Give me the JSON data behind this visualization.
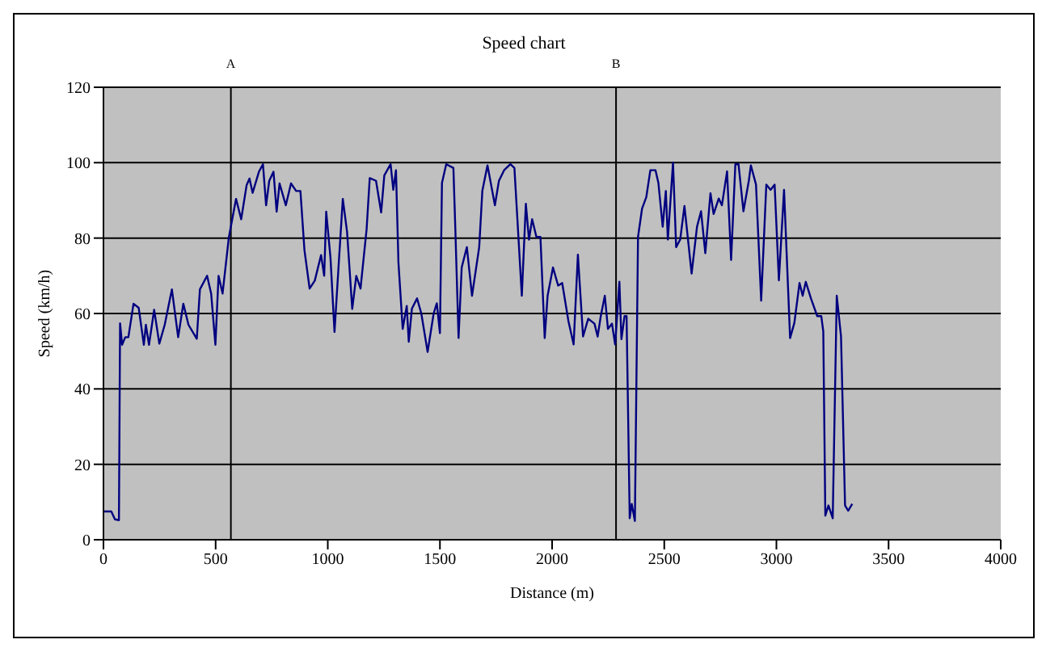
{
  "chart_data": {
    "type": "line",
    "title": "Speed chart",
    "xlabel": "Distance (m)",
    "ylabel": "Speed (km/h)",
    "x": [
      0,
      35,
      51,
      69,
      74,
      83,
      97,
      111,
      134,
      157,
      180,
      189,
      203,
      226,
      249,
      273,
      305,
      333,
      356,
      379,
      416,
      430,
      462,
      480,
      499,
      513,
      531,
      559,
      591,
      614,
      638,
      651,
      665,
      693,
      711,
      725,
      739,
      758,
      772,
      785,
      813,
      836,
      859,
      878,
      896,
      919,
      942,
      970,
      984,
      993,
      1012,
      1030,
      1049,
      1067,
      1086,
      1109,
      1127,
      1146,
      1173,
      1187,
      1215,
      1238,
      1252,
      1280,
      1292,
      1304,
      1315,
      1334,
      1352,
      1361,
      1375,
      1398,
      1417,
      1445,
      1472,
      1486,
      1500,
      1509,
      1528,
      1560,
      1569,
      1583,
      1597,
      1620,
      1643,
      1675,
      1689,
      1712,
      1745,
      1763,
      1786,
      1814,
      1832,
      1865,
      1883,
      1897,
      1911,
      1930,
      1948,
      1967,
      1980,
      2004,
      2027,
      2045,
      2073,
      2096,
      2115,
      2138,
      2161,
      2189,
      2203,
      2217,
      2235,
      2249,
      2267,
      2281,
      2300,
      2309,
      2323,
      2332,
      2346,
      2355,
      2369,
      2383,
      2401,
      2420,
      2438,
      2461,
      2474,
      2493,
      2507,
      2516,
      2539,
      2553,
      2571,
      2590,
      2622,
      2646,
      2664,
      2683,
      2706,
      2720,
      2743,
      2757,
      2780,
      2798,
      2817,
      2831,
      2853,
      2877,
      2886,
      2909,
      2932,
      2955,
      2974,
      2992,
      3011,
      3034,
      3061,
      3080,
      3103,
      3117,
      3131,
      3154,
      3182,
      3200,
      3209,
      3218,
      3232,
      3251,
      3269,
      3288,
      3306,
      3320,
      3338
    ],
    "series": [
      {
        "color": "#000080",
        "values": [
          7.5,
          7.5,
          5.4,
          5.2,
          57.4,
          51.7,
          53.7,
          53.7,
          62.6,
          61.5,
          51.7,
          57,
          51.7,
          61,
          52,
          57,
          66.4,
          53.7,
          62.6,
          57,
          53.3,
          66.4,
          70,
          65.3,
          51.7,
          70,
          65.3,
          80.2,
          90.4,
          85,
          94,
          95.8,
          92,
          97.6,
          99.6,
          88.7,
          95.2,
          97.6,
          87,
          94.5,
          88.7,
          94.5,
          92.5,
          92.5,
          76.8,
          66.6,
          68.7,
          75.5,
          70,
          87,
          74.8,
          55.1,
          73.4,
          90.4,
          81.6,
          61.2,
          70,
          66.6,
          82.3,
          95.9,
          95.2,
          86.8,
          96.6,
          99.6,
          92.8,
          98,
          73.5,
          55.9,
          62,
          52.5,
          61.3,
          64,
          60,
          49.8,
          60,
          62.7,
          54.8,
          94.6,
          99.6,
          98.6,
          81.7,
          53.5,
          72.2,
          77.6,
          64.7,
          77.6,
          92.5,
          99.3,
          88.7,
          95.2,
          98,
          99.6,
          98.6,
          64.7,
          89.1,
          79.6,
          85,
          80.3,
          80.3,
          53.5,
          64.7,
          72.2,
          67.4,
          68.1,
          57.9,
          51.8,
          75.6,
          53.9,
          58.6,
          57.3,
          53.9,
          59.3,
          64.7,
          55.9,
          57.3,
          51.8,
          68.4,
          53.2,
          59.3,
          59.3,
          5.7,
          9.5,
          5,
          80.3,
          87.8,
          90.9,
          98,
          98,
          94.6,
          83,
          92.5,
          79.6,
          100,
          77.6,
          79.6,
          88.5,
          70.6,
          83,
          87.1,
          76,
          91.9,
          86.4,
          90.5,
          88.7,
          97.7,
          74.2,
          99.6,
          99.6,
          87.1,
          95.2,
          99.3,
          94.2,
          63.4,
          94.2,
          92.8,
          94.2,
          68.8,
          92.8,
          53.5,
          57.5,
          68.1,
          64.7,
          68.4,
          64,
          59.3,
          59.3,
          55.2,
          6.4,
          9.1,
          5.7,
          64.7,
          53.9,
          9.1,
          7.7,
          9.5
        ]
      }
    ],
    "xlim": [
      0,
      4000
    ],
    "xticks": [
      0,
      500,
      1000,
      1500,
      2000,
      2500,
      3000,
      3500,
      4000
    ],
    "ylim": [
      0,
      120
    ],
    "yticks": [
      0,
      20,
      40,
      60,
      80,
      100,
      120
    ],
    "grid": "y",
    "marker": "none",
    "line_style": "solid",
    "ref_lines": [
      {
        "axis": "x",
        "value": 568,
        "label": "A",
        "color": "#000000"
      },
      {
        "axis": "x",
        "value": 2285,
        "label": "B",
        "color": "#000000"
      }
    ]
  }
}
